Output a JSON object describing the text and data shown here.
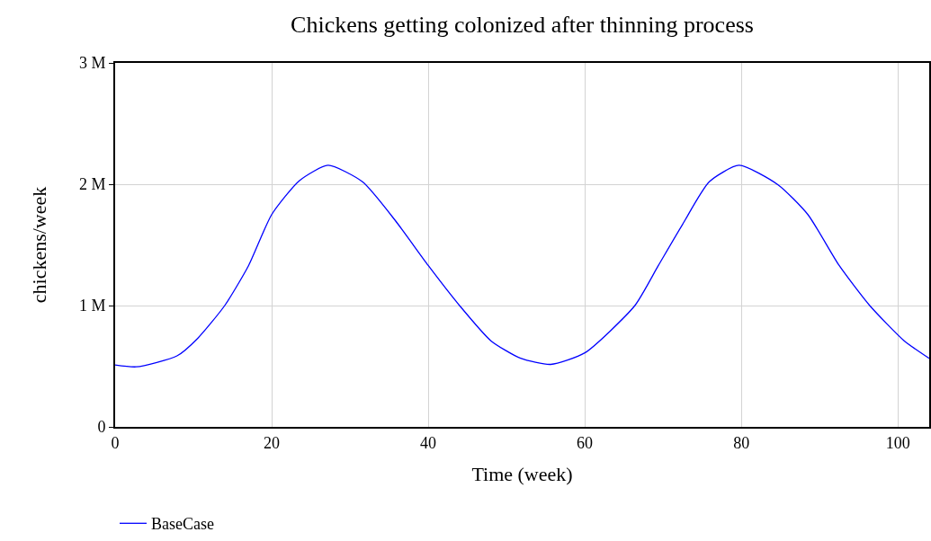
{
  "chart_data": {
    "type": "line",
    "title": "Chickens getting colonized after thinning process",
    "xlabel": "Time (week)",
    "ylabel": "chickens/week",
    "x": [
      0,
      2.7,
      7.9,
      10.55,
      14,
      17.05,
      20,
      23.55,
      27.2,
      31.6,
      35.8,
      40,
      44,
      48,
      51.8,
      55.65,
      60,
      66.4,
      69.4,
      72.5,
      75.9,
      79.7,
      84.7,
      88.5,
      92.5,
      96.4,
      100.8,
      104
    ],
    "series": [
      {
        "name": "BaseCase",
        "color": "#0000ff",
        "values": [
          510000,
          495000,
          585000,
          730000,
          1000000,
          1330000,
          1750000,
          2030000,
          2156000,
          2020000,
          1700000,
          1330000,
          1000000,
          710000,
          565000,
          515000,
          610000,
          1000000,
          1330000,
          1670000,
          2020000,
          2156000,
          1995000,
          1750000,
          1330000,
          1000000,
          710000,
          565000
        ]
      }
    ],
    "xlim": [
      0,
      104
    ],
    "xticks": [
      0,
      20,
      40,
      60,
      80,
      100
    ],
    "ylim": [
      0,
      3000000
    ],
    "yticks": [
      {
        "value": 0,
        "label": "0"
      },
      {
        "value": 1000000,
        "label": "1 M"
      },
      {
        "value": 2000000,
        "label": "2 M"
      },
      {
        "value": 3000000,
        "label": "3 M"
      }
    ],
    "grid": true,
    "legend": "bottom left",
    "marker": "none",
    "line_style": "solid"
  }
}
